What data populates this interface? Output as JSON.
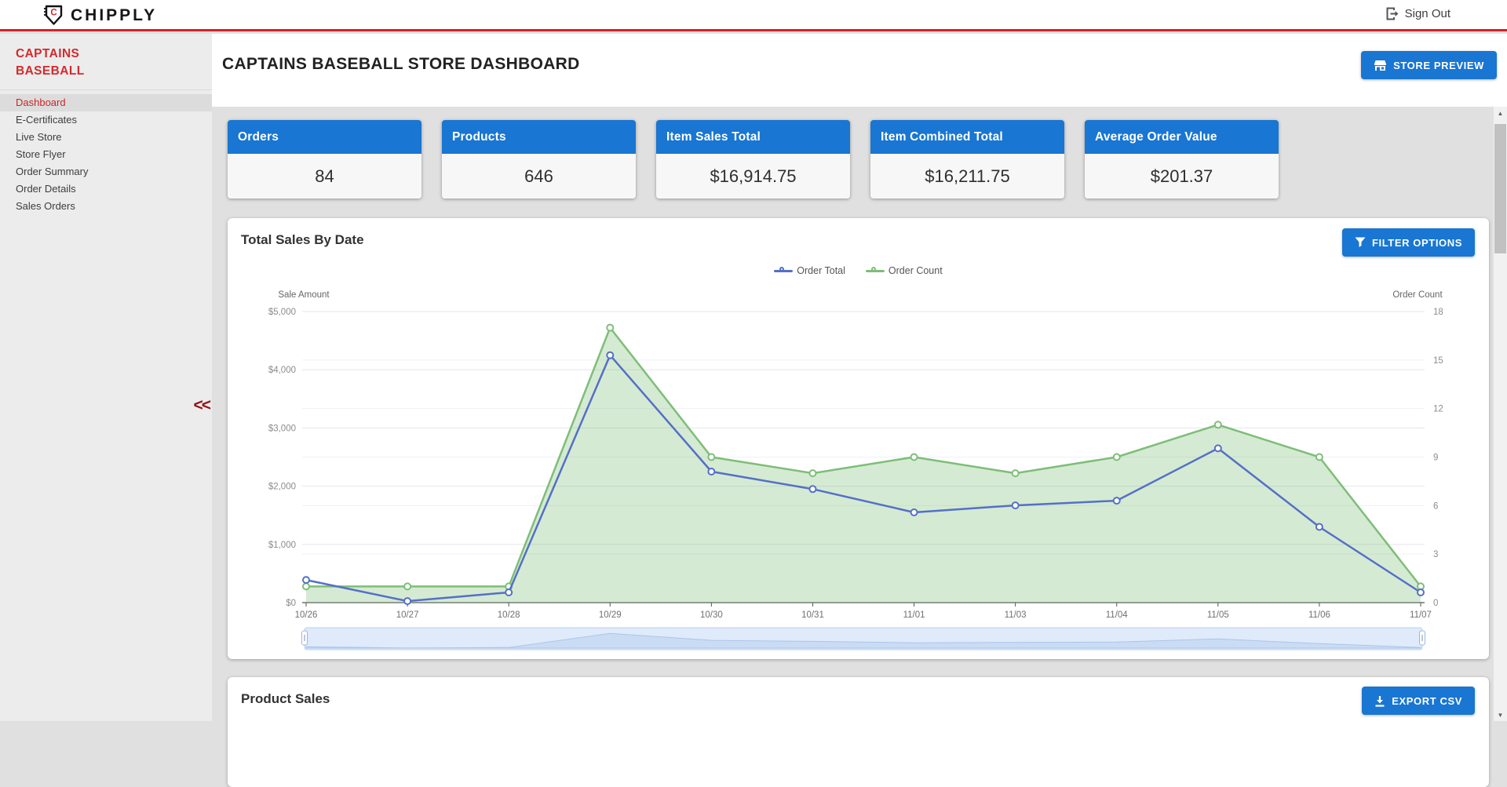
{
  "topbar": {
    "brand": "CHIPPLY",
    "sign_out_label": "Sign Out"
  },
  "sidebar": {
    "store_name_line1": "CAPTAINS",
    "store_name_line2": "BASEBALL",
    "collapse_label": "<<",
    "items": [
      {
        "label": "Dashboard",
        "active": true
      },
      {
        "label": "E-Certificates",
        "active": false
      },
      {
        "label": "Live Store",
        "active": false
      },
      {
        "label": "Store Flyer",
        "active": false
      },
      {
        "label": "Order Summary",
        "active": false
      },
      {
        "label": "Order Details",
        "active": false
      },
      {
        "label": "Sales Orders",
        "active": false
      }
    ]
  },
  "header": {
    "title": "CAPTAINS BASEBALL STORE DASHBOARD",
    "store_preview_label": "STORE PREVIEW"
  },
  "stats": [
    {
      "label": "Orders",
      "value": "84"
    },
    {
      "label": "Products",
      "value": "646"
    },
    {
      "label": "Item Sales Total",
      "value": "$16,914.75"
    },
    {
      "label": "Item Combined Total",
      "value": "$16,211.75"
    },
    {
      "label": "Average Order Value",
      "value": "$201.37"
    }
  ],
  "sales_panel": {
    "title": "Total Sales By Date",
    "filter_label": "FILTER OPTIONS"
  },
  "product_panel": {
    "title": "Product Sales",
    "export_label": "EXPORT CSV"
  },
  "colors": {
    "accent_blue": "#1976d2",
    "brand_red": "#dd1f26",
    "order_total_line": "#5470C6",
    "order_count_line": "#7EBE78",
    "order_count_fill": "rgba(126,190,120,0.33)"
  },
  "chart_data": {
    "type": "line",
    "title": "Total Sales By Date",
    "categories": [
      "10/26",
      "10/27",
      "10/28",
      "10/29",
      "10/30",
      "10/31",
      "11/01",
      "11/03",
      "11/04",
      "11/05",
      "11/06",
      "11/07"
    ],
    "series": [
      {
        "name": "Order Total",
        "axis": "left",
        "style": "line",
        "color": "#5470C6",
        "values": [
          390,
          25,
          175,
          4250,
          2250,
          1950,
          1550,
          1670,
          1750,
          2650,
          1300,
          175
        ]
      },
      {
        "name": "Order Count",
        "axis": "right",
        "style": "area",
        "color": "#7EBE78",
        "values": [
          1,
          1,
          1,
          17,
          9,
          8,
          9,
          8,
          9,
          11,
          9,
          1
        ]
      }
    ],
    "left_axis": {
      "label": "Sale Amount",
      "min": 0,
      "max": 5000,
      "tick_step": 1000,
      "tick_prefix": "$"
    },
    "right_axis": {
      "label": "Order Count",
      "min": 0,
      "max": 18,
      "tick_step": 3
    },
    "legend_position": "top-center",
    "grid": true,
    "navigator": true
  }
}
